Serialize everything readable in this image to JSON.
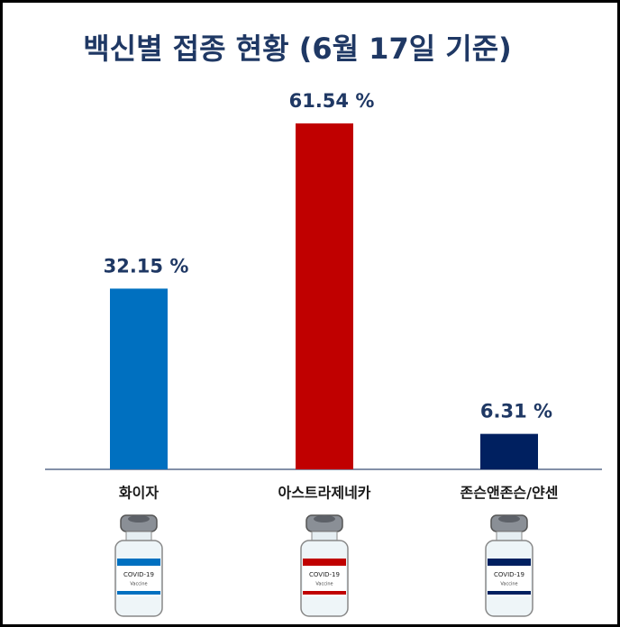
{
  "chart_data": {
    "type": "bar",
    "title": "백신별 접종 현황 (6월 17일 기준)",
    "categories": [
      "화이자",
      "아스트라제네카",
      "존슨앤존슨/얀센"
    ],
    "values": [
      32.15,
      61.54,
      6.31
    ],
    "value_labels": [
      "32.15 %",
      "61.54 %",
      "6.31 %"
    ],
    "colors": [
      "#0070c0",
      "#c00000",
      "#002060"
    ]
  },
  "vial_label": [
    "COVID-19",
    "Vaccine"
  ]
}
